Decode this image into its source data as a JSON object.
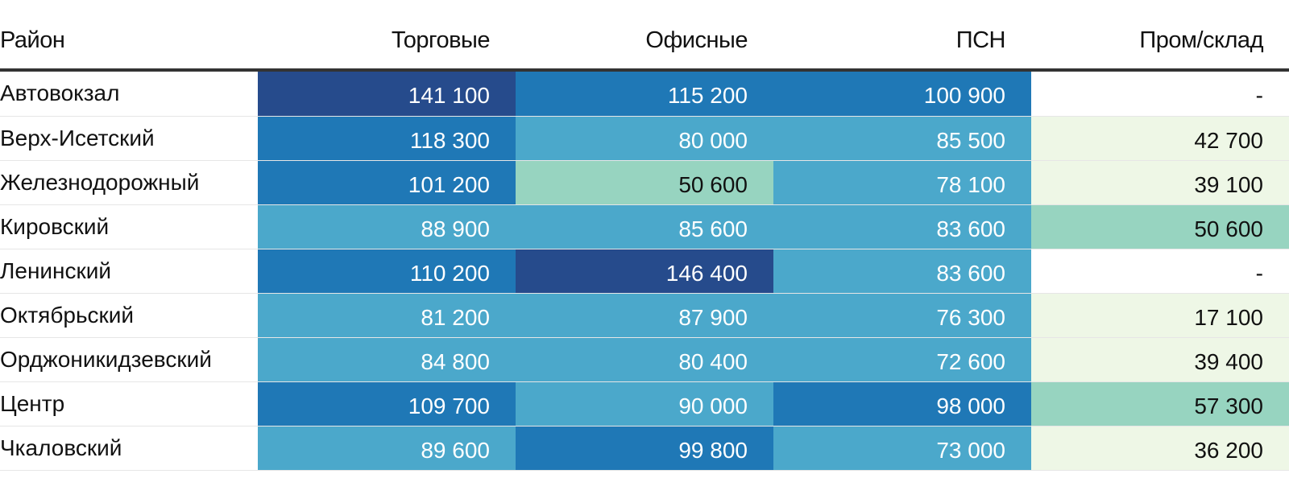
{
  "chart_data": {
    "type": "table",
    "columns": [
      "Район",
      "Торговые",
      "Офисные",
      "ПСН",
      "Пром/склад"
    ],
    "rows": [
      {
        "name": "Автовокзал",
        "values": [
          "141 100",
          "115 200",
          "100 900",
          "-"
        ]
      },
      {
        "name": "Верх-Исетский",
        "values": [
          "118 300",
          "80 000",
          "85 500",
          "42 700"
        ]
      },
      {
        "name": "Железнодорожный",
        "values": [
          "101 200",
          "50 600",
          "78 100",
          "39 100"
        ]
      },
      {
        "name": "Кировский",
        "values": [
          "88 900",
          "85 600",
          "83 600",
          "50 600"
        ]
      },
      {
        "name": "Ленинский",
        "values": [
          "110 200",
          "146 400",
          "83 600",
          "-"
        ]
      },
      {
        "name": "Октябрьский",
        "values": [
          "81 200",
          "87 900",
          "76 300",
          "17 100"
        ]
      },
      {
        "name": "Орджоникидзевский",
        "values": [
          "84 800",
          "80 400",
          "72 600",
          "39 400"
        ]
      },
      {
        "name": "Центр",
        "values": [
          "109 700",
          "90 000",
          "98 000",
          "57 300"
        ]
      },
      {
        "name": "Чкаловский",
        "values": [
          "89 600",
          "99 800",
          "73 000",
          "36 200"
        ]
      }
    ],
    "color_scale": {
      "empty": "#ffffff",
      "steps": [
        {
          "max": 45000,
          "bg": "#eef7e6",
          "fg": "#111111"
        },
        {
          "max": 70000,
          "bg": "#97d4c0",
          "fg": "#111111"
        },
        {
          "max": 95000,
          "bg": "#4ba8cb",
          "fg": "#ffffff"
        },
        {
          "max": 135000,
          "bg": "#1f78b6",
          "fg": "#ffffff"
        },
        {
          "max": 1000000000000.0,
          "bg": "#264b8c",
          "fg": "#ffffff"
        }
      ]
    }
  }
}
